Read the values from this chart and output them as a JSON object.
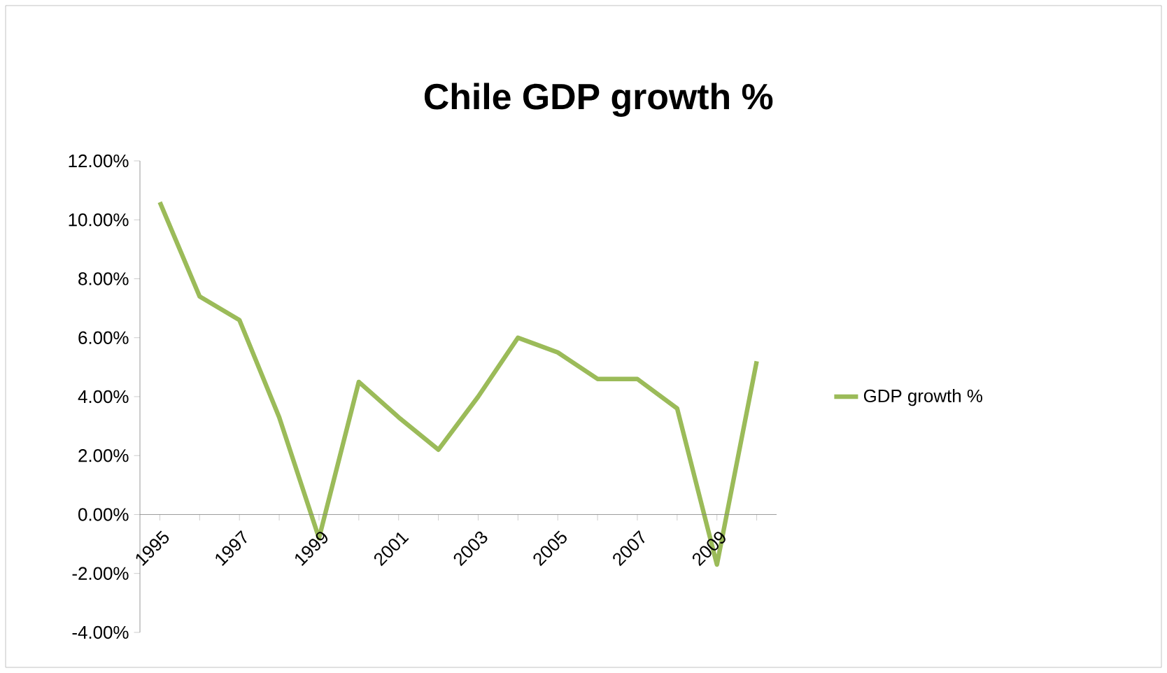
{
  "chart_data": {
    "type": "line",
    "title": "Chile GDP growth %",
    "categories": [
      "1995",
      null,
      "1997",
      null,
      "1999",
      null,
      "2001",
      null,
      "2003",
      null,
      "2005",
      null,
      "2007",
      null,
      "2009",
      null
    ],
    "series": [
      {
        "name": "GDP growth %",
        "color": "#9bbb59",
        "values": [
          10.6,
          7.4,
          6.6,
          3.3,
          -0.8,
          4.5,
          3.3,
          2.2,
          4.0,
          6.0,
          5.5,
          4.6,
          4.6,
          3.6,
          -1.7,
          5.2
        ]
      }
    ],
    "ylim": [
      -4,
      12
    ],
    "yticks": [
      {
        "value": -4,
        "label": "-4.00%"
      },
      {
        "value": -2,
        "label": "-2.00%"
      },
      {
        "value": 0,
        "label": "0.00%"
      },
      {
        "value": 2,
        "label": "2.00%"
      },
      {
        "value": 4,
        "label": "4.00%"
      },
      {
        "value": 6,
        "label": "6.00%"
      },
      {
        "value": 8,
        "label": "8.00%"
      },
      {
        "value": 10,
        "label": "10.00%"
      },
      {
        "value": 12,
        "label": "12.00%"
      }
    ],
    "grid": false,
    "legend": "right",
    "marker": "none",
    "line_style": "solid"
  }
}
